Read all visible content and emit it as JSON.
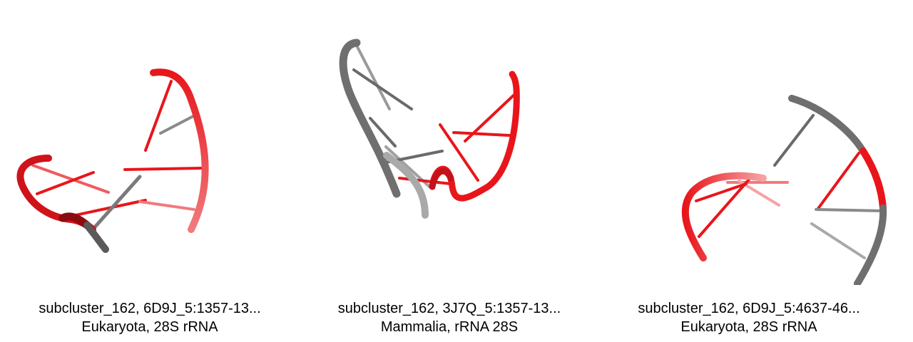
{
  "colors": {
    "paired": "#e8161b",
    "paired_dark": "#b00b10",
    "unpaired": "#6f6f6f",
    "unpaired_light": "#a9a9a9"
  },
  "panels": [
    {
      "title": "subcluster_162, 6D9J_5:1357-13...",
      "subtitle": "Eukaryota, 28S rRNA"
    },
    {
      "title": "subcluster_162, 3J7Q_5:1357-13...",
      "subtitle": "Mammalia, rRNA 28S"
    },
    {
      "title": "subcluster_162, 6D9J_5:4637-46...",
      "subtitle": "Eukaryota, 28S rRNA"
    }
  ]
}
